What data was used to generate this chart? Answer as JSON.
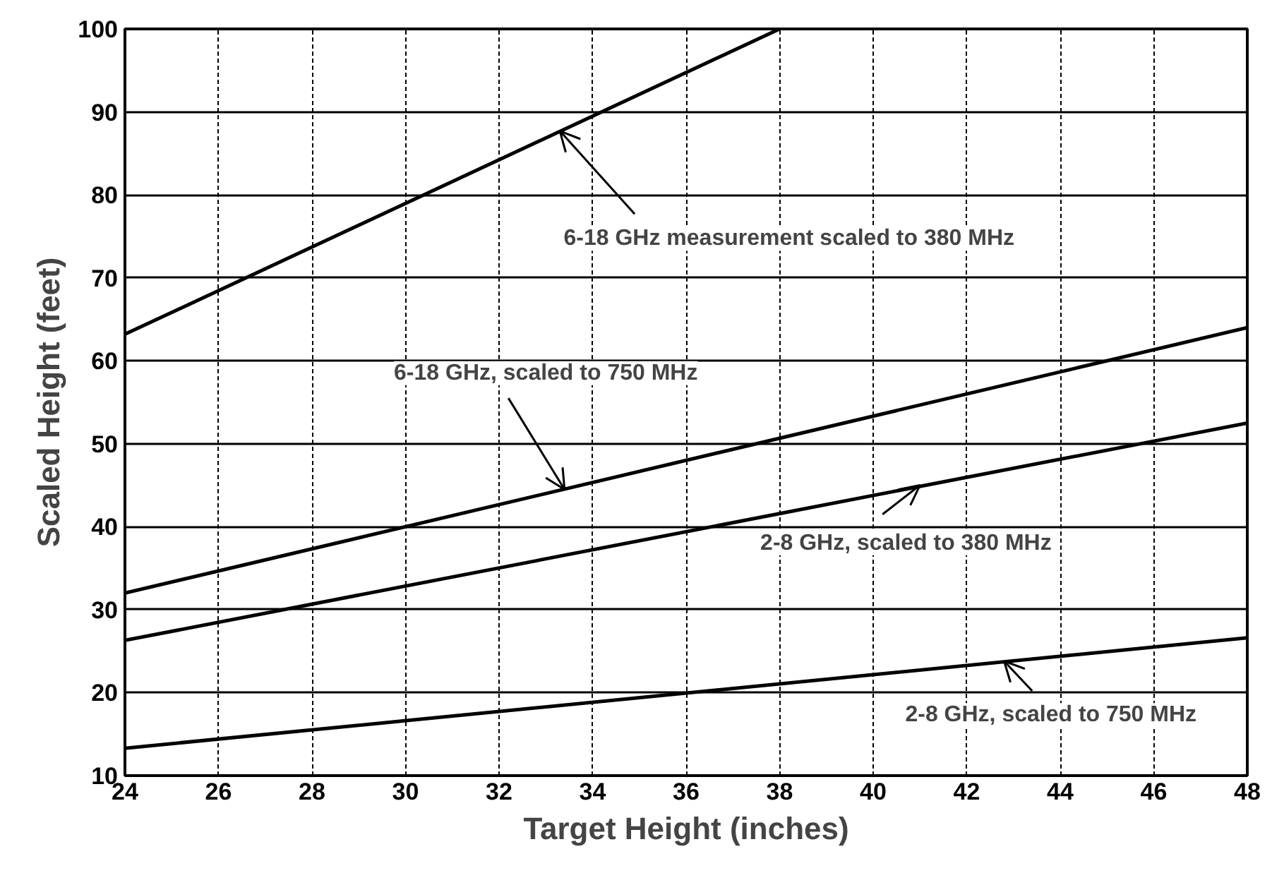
{
  "chart_data": {
    "type": "line",
    "xlabel": "Target Height (inches)",
    "ylabel": "Scaled Height (feet)",
    "xlim": [
      24,
      48
    ],
    "xticks": [
      24,
      26,
      28,
      30,
      32,
      34,
      36,
      38,
      40,
      42,
      44,
      46,
      48
    ],
    "ylim": [
      10,
      100
    ],
    "yticks": [
      10,
      20,
      30,
      40,
      50,
      60,
      70,
      80,
      90,
      100
    ],
    "grid": true,
    "marker": "none",
    "line_style": "solid",
    "series": [
      {
        "color": "#000000",
        "x": [
          24,
          38
        ],
        "values": [
          63.2,
          100
        ]
      },
      {
        "color": "#000000",
        "x": [
          24,
          48
        ],
        "values": [
          32,
          64
        ]
      },
      {
        "color": "#000000",
        "x": [
          24,
          48
        ],
        "values": [
          26.3,
          52.5
        ]
      },
      {
        "color": "#000000",
        "x": [
          24,
          48
        ],
        "values": [
          13.3,
          26.6
        ]
      }
    ],
    "annotations": [
      {
        "text": "6-18 GHz measurement scaled to 380 MHz",
        "x": 33.3,
        "y": 87.7
      },
      {
        "text": "6-18 GHz, scaled to 750 MHz",
        "x": 33.4,
        "y": 44.5
      },
      {
        "text": "2-8 GHz, scaled to 380 MHz",
        "x": 41,
        "y": 45
      },
      {
        "text": "2-8 GHz, scaled to 750 MHz",
        "x": 42.8,
        "y": 23.8
      }
    ]
  }
}
